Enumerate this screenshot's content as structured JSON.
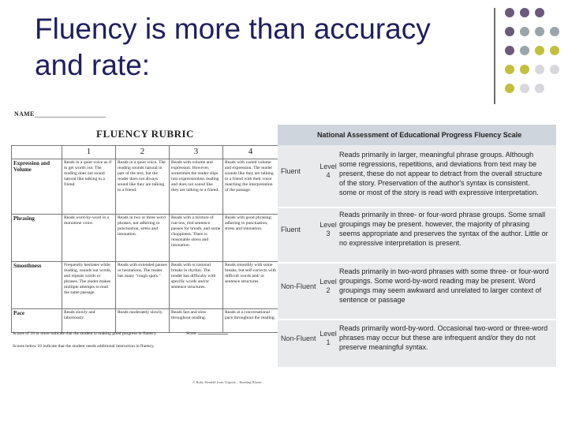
{
  "slide": {
    "title_line1": "Fluency is more than accuracy",
    "title_line2": "and rate:"
  },
  "decor": {
    "dot_colors": [
      "#6b5a7b",
      "#9aa5ab",
      "#c2bf3d",
      "#d8d8dc"
    ]
  },
  "rubric": {
    "name_label": "NAME",
    "title": "FLUENCY RUBRIC",
    "columns": [
      "",
      "1",
      "2",
      "3",
      "4"
    ],
    "rows": [
      {
        "criterion": "Expression and Volume",
        "cells": [
          "Reads in a quiet voice as if to get words out. The reading does not sound natural like talking to a friend.",
          "Reads in a quiet voice. The reading sounds natural in part of the text, but the reader does not always sound like they are talking to a friend.",
          "Reads with volume and expression. However, sometimes the reader slips into expressionless reading and does not sound like they are talking to a friend.",
          "Reads with varied volume and expression. The reader sounds like they are talking to a friend with their voice matching the interpretation of the passage."
        ]
      },
      {
        "criterion": "Phrasing",
        "cells": [
          "Reads word-by-word in a monotone voice.",
          "Reads in two or three word phrases, not adhering to punctuation, stress and intonation.",
          "Reads with a mixture of run-ons, mid sentence pauses for breath, and some choppiness. There is reasonable stress and intonation.",
          "Reads with good phrasing; adhering to punctuation, stress and intonation."
        ]
      },
      {
        "criterion": "Smoothness",
        "cells": [
          "Frequently hesitates while reading, sounds out words, and repeats words or phrases. The reader makes multiple attempts to read the same passage.",
          "Reads with extended pauses or hesitations. The reader has many \"rough spots.\"",
          "Reads with occasional breaks in rhythm. The reader has difficulty with specific words and/or sentence structures.",
          "Reads smoothly with some breaks, but self-corrects with difficult words and/ or sentence structures."
        ]
      },
      {
        "criterion": "Pace",
        "cells": [
          "Reads slowly and laboriously.",
          "Reads moderately slowly.",
          "Reads fast and slow throughout reading.",
          "Reads at a conversational pace throughout the reading."
        ]
      }
    ],
    "note1": "Scores of 10 or more indicate that the student is making good progress in fluency.",
    "score_label": "Score",
    "note2": "Scores below 10 indicate that the student needs additional instruction in fluency.",
    "footer": "© Ruby Hendall from Tripodo – Reading Bluem..."
  },
  "naep": {
    "title": "National Assessment of Educational Progress Fluency Scale",
    "rows": [
      {
        "category": "Fluent",
        "level_word": "Level",
        "level_num": "4",
        "description": "Reads primarily in larger, meaningful phrase groups. Although some regressions, repetitions, and deviations from text may be present, these do not appear to detract from the overall structure of the story. Preservation of the author's syntax is consistent. some or most of the story is read with expressive interpretation."
      },
      {
        "category": "Fluent",
        "level_word": "Level",
        "level_num": "3",
        "description": "Reads primarily in three- or four-word phrase groups. Some small groupings may be present. however, the majority of phrasing seems appropriate and preserves the syntax of the author. Little or no expressive interpretation is present."
      },
      {
        "category": "Non-Fluent",
        "level_word": "Level",
        "level_num": "2",
        "description": "Reads primarily in two-word phrases with some three- or four-word groupings. Some word-by-word reading may be present. Word groupings may seem awkward and unrelated to larger context of sentence or passage"
      },
      {
        "category": "Non-Fluent",
        "level_word": "Level",
        "level_num": "1",
        "description": "Reads primarily word-by-word. Occasional two-word or three-word phrases may occur but these are infrequent and/or they do not preserve meaningful syntax."
      }
    ]
  }
}
